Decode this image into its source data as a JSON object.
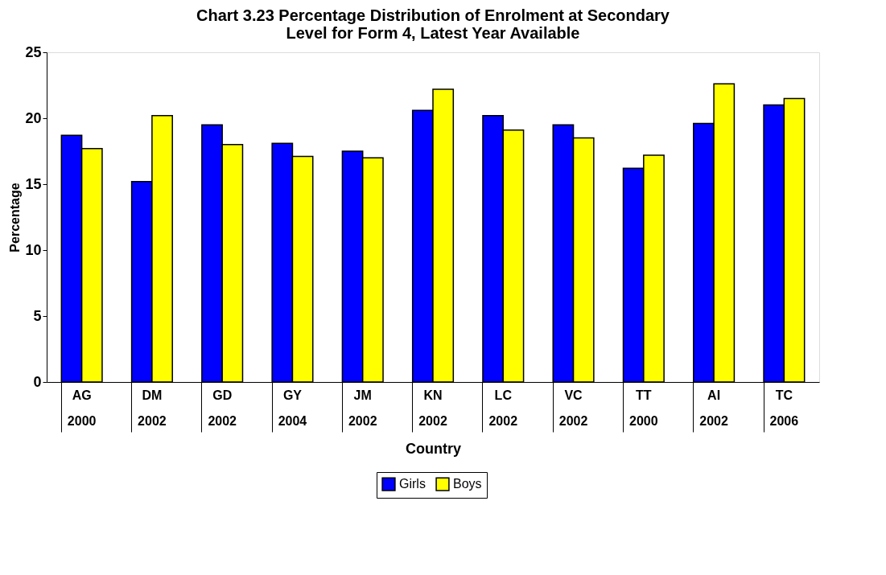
{
  "chart_data": {
    "type": "bar",
    "title": [
      "Chart 3.23 Percentage Distribution of Enrolment at Secondary",
      "Level for Form 4, Latest Year Available"
    ],
    "xlabel": "Country",
    "ylabel": "Percentage",
    "categories": [
      "AG\n2000",
      "DM\n2002",
      "GD\n2002",
      "GY\n2004",
      "JM\n2002",
      "KN\n2002",
      "LC\n2002",
      "VC\n2002",
      "TT\n2000",
      "AI\n2002",
      "TC\n2006"
    ],
    "series": [
      {
        "name": "Girls",
        "color": "#0000ff",
        "values": [
          18.7,
          15.2,
          19.5,
          18.1,
          17.5,
          20.6,
          20.2,
          19.5,
          16.2,
          19.6,
          21.0
        ]
      },
      {
        "name": "Boys",
        "color": "#ffff00",
        "values": [
          17.7,
          20.2,
          18.0,
          17.1,
          17.0,
          22.2,
          19.1,
          18.5,
          17.2,
          22.6,
          21.5
        ]
      }
    ],
    "ylim": [
      0,
      25
    ],
    "yticks": [
      0,
      5,
      10,
      15,
      20,
      25
    ],
    "grid": false,
    "legend": "bottom"
  }
}
